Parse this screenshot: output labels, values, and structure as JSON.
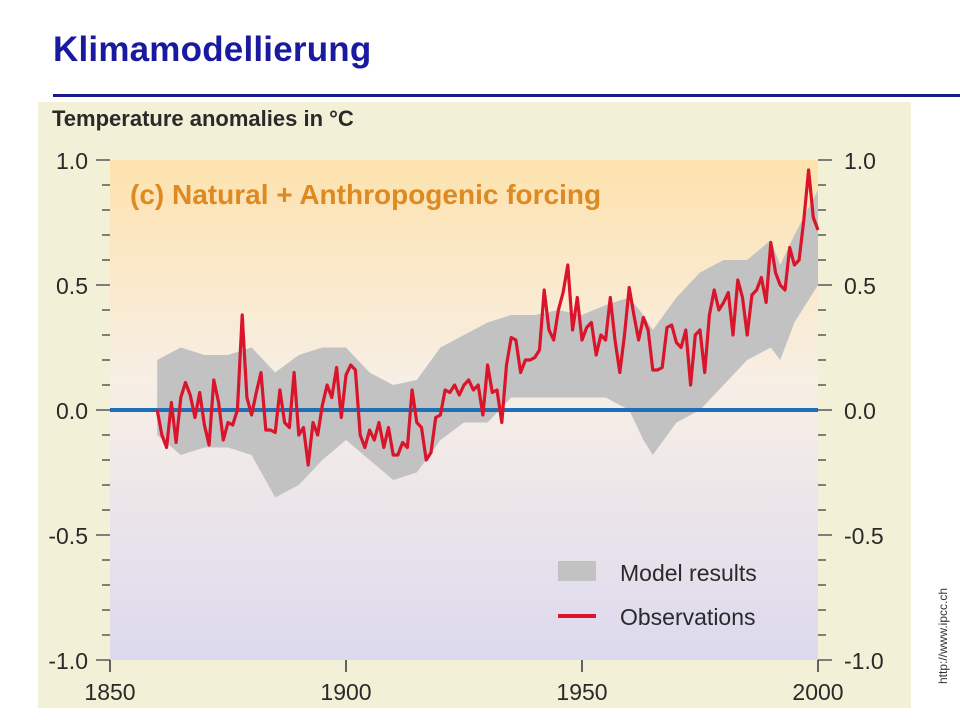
{
  "slide": {
    "title": "Klimamodellierung",
    "credit": "http://www.ipcc.ch"
  },
  "colors": {
    "title": "#1a1aa0",
    "panel_background": "#f3f0d8",
    "gradient_top": "#fde2ad",
    "gradient_bottom": "#dcd9ee",
    "observations": "#d9142b",
    "model_band": "#c2c2c2",
    "zero_line": "#1f6fb8",
    "panel_label": "#dd8a22"
  },
  "chart_data": {
    "type": "line",
    "title": "Temperature anomalies in °C",
    "subtitle": "(c) Natural + Anthropogenic forcing",
    "xlim": [
      1850,
      2000
    ],
    "ylim": [
      -1.0,
      1.0
    ],
    "x_ticks": [
      1850,
      1900,
      1950,
      2000
    ],
    "x_tick_labels": [
      "1850",
      "1900",
      "1950",
      "2000"
    ],
    "y_ticks": [
      -1.0,
      -0.5,
      0.0,
      0.5,
      1.0
    ],
    "y_tick_labels_left": [
      "-1.0",
      "-0.5",
      "0.0",
      "0.5",
      "1.0"
    ],
    "y_tick_labels_right": [
      "-1.0",
      "-0.5",
      "0.0",
      "0.5",
      "1.0"
    ],
    "y_minor_step": 0.1,
    "reference_line": 0.0,
    "grid": false,
    "legend_position": "bottom-right",
    "legend": [
      {
        "label": "Model results",
        "kind": "band"
      },
      {
        "label": "Observations",
        "kind": "line"
      }
    ],
    "series": [
      {
        "name": "Observations",
        "x": [
          1860,
          1861,
          1862,
          1863,
          1864,
          1865,
          1866,
          1867,
          1868,
          1869,
          1870,
          1871,
          1872,
          1873,
          1874,
          1875,
          1876,
          1877,
          1878,
          1879,
          1880,
          1881,
          1882,
          1883,
          1884,
          1885,
          1886,
          1887,
          1888,
          1889,
          1890,
          1891,
          1892,
          1893,
          1894,
          1895,
          1896,
          1897,
          1898,
          1899,
          1900,
          1901,
          1902,
          1903,
          1904,
          1905,
          1906,
          1907,
          1908,
          1909,
          1910,
          1911,
          1912,
          1913,
          1914,
          1915,
          1916,
          1917,
          1918,
          1919,
          1920,
          1921,
          1922,
          1923,
          1924,
          1925,
          1926,
          1927,
          1928,
          1929,
          1930,
          1931,
          1932,
          1933,
          1934,
          1935,
          1936,
          1937,
          1938,
          1939,
          1940,
          1941,
          1942,
          1943,
          1944,
          1945,
          1946,
          1947,
          1948,
          1949,
          1950,
          1951,
          1952,
          1953,
          1954,
          1955,
          1956,
          1957,
          1958,
          1959,
          1960,
          1961,
          1962,
          1963,
          1964,
          1965,
          1966,
          1967,
          1968,
          1969,
          1970,
          1971,
          1972,
          1973,
          1974,
          1975,
          1976,
          1977,
          1978,
          1979,
          1980,
          1981,
          1982,
          1983,
          1984,
          1985,
          1986,
          1987,
          1988,
          1989,
          1990,
          1991,
          1992,
          1993,
          1994,
          1995,
          1996,
          1997,
          1998,
          1999,
          2000
        ],
        "values": [
          0.0,
          -0.1,
          -0.15,
          0.03,
          -0.13,
          0.05,
          0.11,
          0.06,
          -0.03,
          0.07,
          -0.06,
          -0.14,
          0.12,
          0.03,
          -0.12,
          -0.05,
          -0.06,
          0.0,
          0.38,
          0.05,
          -0.02,
          0.07,
          0.15,
          -0.08,
          -0.08,
          -0.09,
          0.08,
          -0.05,
          -0.07,
          0.15,
          -0.1,
          -0.07,
          -0.22,
          -0.05,
          -0.1,
          0.02,
          0.1,
          0.05,
          0.17,
          -0.03,
          0.14,
          0.18,
          0.16,
          -0.1,
          -0.15,
          -0.08,
          -0.12,
          -0.05,
          -0.15,
          -0.07,
          -0.18,
          -0.18,
          -0.13,
          -0.15,
          0.08,
          -0.05,
          -0.07,
          -0.2,
          -0.17,
          -0.03,
          -0.02,
          0.08,
          0.07,
          0.1,
          0.06,
          0.1,
          0.12,
          0.08,
          0.1,
          -0.02,
          0.18,
          0.07,
          0.08,
          -0.05,
          0.18,
          0.29,
          0.28,
          0.15,
          0.2,
          0.2,
          0.21,
          0.24,
          0.48,
          0.32,
          0.28,
          0.4,
          0.47,
          0.58,
          0.32,
          0.45,
          0.28,
          0.33,
          0.35,
          0.22,
          0.3,
          0.28,
          0.45,
          0.28,
          0.15,
          0.3,
          0.49,
          0.38,
          0.28,
          0.37,
          0.32,
          0.16,
          0.16,
          0.17,
          0.33,
          0.34,
          0.27,
          0.25,
          0.32,
          0.1,
          0.3,
          0.32,
          0.15,
          0.38,
          0.48,
          0.4,
          0.43,
          0.47,
          0.3,
          0.52,
          0.45,
          0.3,
          0.46,
          0.48,
          0.53,
          0.43,
          0.67,
          0.55,
          0.5,
          0.48,
          0.65,
          0.58,
          0.6,
          0.76,
          0.96,
          0.77,
          0.72
        ]
      },
      {
        "name": "Model results",
        "x": [
          1860,
          1865,
          1870,
          1875,
          1880,
          1885,
          1890,
          1895,
          1900,
          1905,
          1910,
          1915,
          1920,
          1925,
          1930,
          1935,
          1940,
          1945,
          1950,
          1955,
          1960,
          1963,
          1965,
          1970,
          1975,
          1980,
          1985,
          1990,
          1992,
          1995,
          2000
        ],
        "lower": [
          -0.1,
          -0.18,
          -0.15,
          -0.15,
          -0.18,
          -0.35,
          -0.3,
          -0.2,
          -0.12,
          -0.2,
          -0.28,
          -0.25,
          -0.12,
          -0.05,
          -0.05,
          0.05,
          0.05,
          0.05,
          0.05,
          0.05,
          0.0,
          -0.12,
          -0.18,
          -0.05,
          0.0,
          0.1,
          0.2,
          0.25,
          0.2,
          0.35,
          0.5
        ],
        "upper": [
          0.2,
          0.25,
          0.22,
          0.22,
          0.25,
          0.15,
          0.22,
          0.25,
          0.25,
          0.15,
          0.1,
          0.12,
          0.25,
          0.3,
          0.35,
          0.38,
          0.38,
          0.4,
          0.38,
          0.42,
          0.45,
          0.38,
          0.32,
          0.45,
          0.55,
          0.6,
          0.6,
          0.68,
          0.58,
          0.7,
          0.88
        ]
      }
    ]
  }
}
